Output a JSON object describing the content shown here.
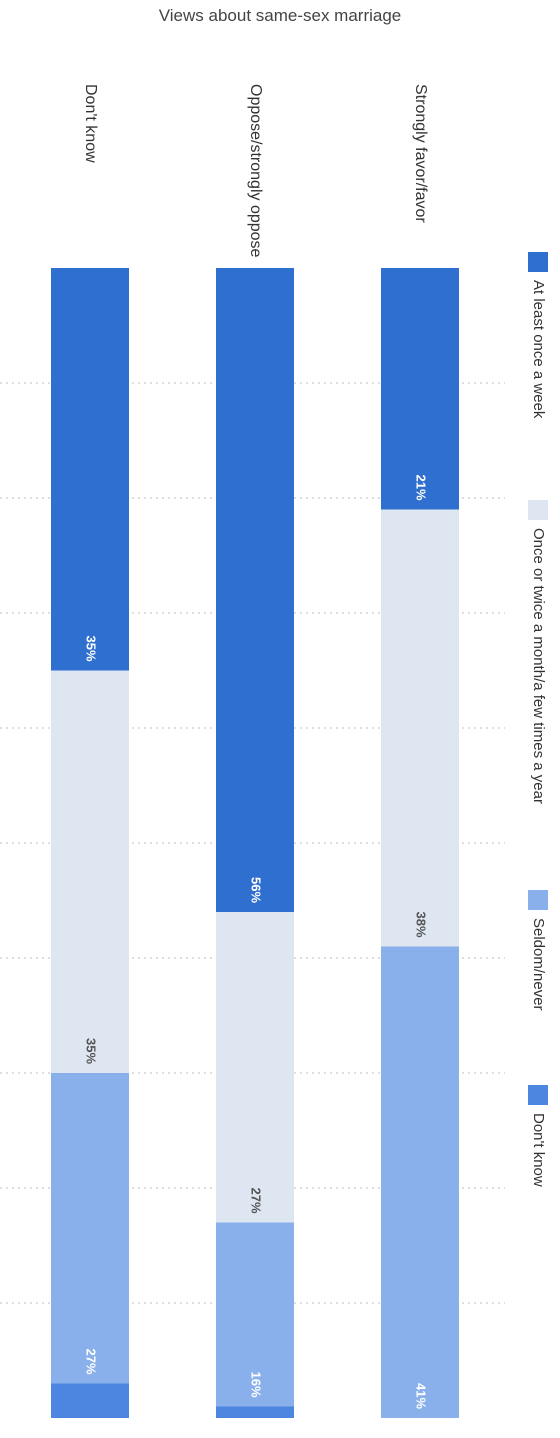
{
  "chart_data": {
    "type": "bar",
    "orientation": "stacked-horizontal, figure rotated 90° clockwise",
    "title": "Views about same-sex marriage",
    "categories": [
      "Strongly favor/favor",
      "Oppose/strongly oppose",
      "Don't know"
    ],
    "series": [
      {
        "name": "At least once a week",
        "values": [
          21,
          56,
          35
        ],
        "labels": [
          "21%",
          "56%",
          "35%"
        ],
        "color": "#2f6fcf"
      },
      {
        "name": "Once or twice a month/a few times a year",
        "values": [
          38,
          27,
          35
        ],
        "labels": [
          "38%",
          "27%",
          "35%"
        ],
        "color": "#dde6f1"
      },
      {
        "name": "Seldom/never",
        "values": [
          41,
          16,
          27
        ],
        "labels": [
          "41%",
          "16%",
          "27%"
        ],
        "color": "#8ab0ec"
      },
      {
        "name": "Don't know",
        "values": [
          0,
          1,
          3
        ],
        "labels": [
          "",
          "",
          ""
        ],
        "color": "#4c86e0"
      }
    ],
    "xlim": [
      0,
      100
    ],
    "grid": true,
    "legend": "right"
  }
}
